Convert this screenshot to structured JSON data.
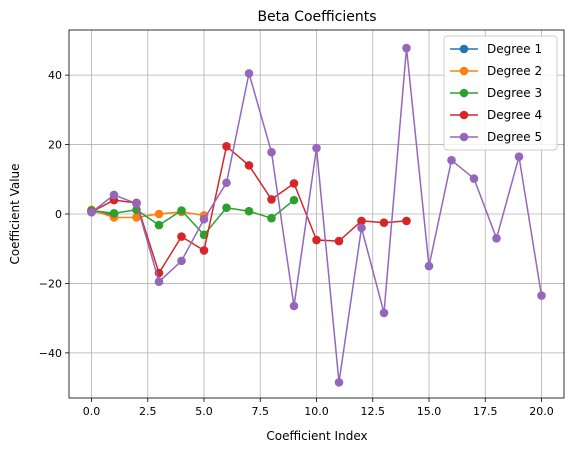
{
  "chart_data": {
    "type": "line",
    "title": "Beta Coefficients",
    "xlabel": "Coefficient Index",
    "ylabel": "Coefficient Value",
    "xlim": [
      -1,
      21
    ],
    "ylim": [
      -53,
      53
    ],
    "xticks": [
      0,
      2.5,
      5,
      7.5,
      10,
      12.5,
      15,
      17.5,
      20
    ],
    "xtick_labels": [
      "0.0",
      "2.5",
      "5.0",
      "7.5",
      "10.0",
      "12.5",
      "15.0",
      "17.5",
      "20.0"
    ],
    "yticks": [
      -40,
      -20,
      0,
      20,
      40
    ],
    "ytick_labels": [
      "−40",
      "−20",
      "0",
      "20",
      "40"
    ],
    "grid": true,
    "legend_position": "top-right",
    "series": [
      {
        "name": "Degree 1",
        "color": "#1f77b4",
        "x": [
          0,
          1
        ],
        "y": [
          0.8,
          -0.3
        ]
      },
      {
        "name": "Degree 2",
        "color": "#ff7f0e",
        "x": [
          0,
          1,
          2,
          3,
          4,
          5
        ],
        "y": [
          1.2,
          -1.0,
          -1.0,
          0.0,
          0.6,
          -0.4
        ]
      },
      {
        "name": "Degree 3",
        "color": "#2ca02c",
        "x": [
          0,
          1,
          2,
          3,
          4,
          5,
          6,
          7,
          8,
          9
        ],
        "y": [
          1.0,
          0.2,
          1.2,
          -3.2,
          1.0,
          -6.0,
          1.8,
          0.8,
          -1.2,
          4.0
        ]
      },
      {
        "name": "Degree 4",
        "color": "#d62728",
        "x": [
          0,
          1,
          2,
          3,
          4,
          5,
          6,
          7,
          8,
          9,
          10,
          11,
          12,
          13,
          14
        ],
        "y": [
          0.6,
          4.0,
          3.2,
          -17.0,
          -6.5,
          -10.5,
          19.5,
          14.0,
          4.2,
          8.8,
          -7.5,
          -7.8,
          -2.0,
          -2.5,
          -2.0
        ]
      },
      {
        "name": "Degree 5",
        "color": "#9467bd",
        "x": [
          0,
          1,
          2,
          3,
          4,
          5,
          6,
          7,
          8,
          9,
          10,
          11,
          12,
          13,
          14,
          15,
          16,
          17,
          18,
          19,
          20
        ],
        "y": [
          0.5,
          5.5,
          3.0,
          -19.5,
          -13.5,
          -1.5,
          9.0,
          40.5,
          17.8,
          -26.5,
          19.0,
          -48.5,
          -4.0,
          -28.5,
          47.8,
          -15.0,
          15.5,
          10.2,
          -7.0,
          16.5,
          -23.5
        ]
      }
    ]
  }
}
